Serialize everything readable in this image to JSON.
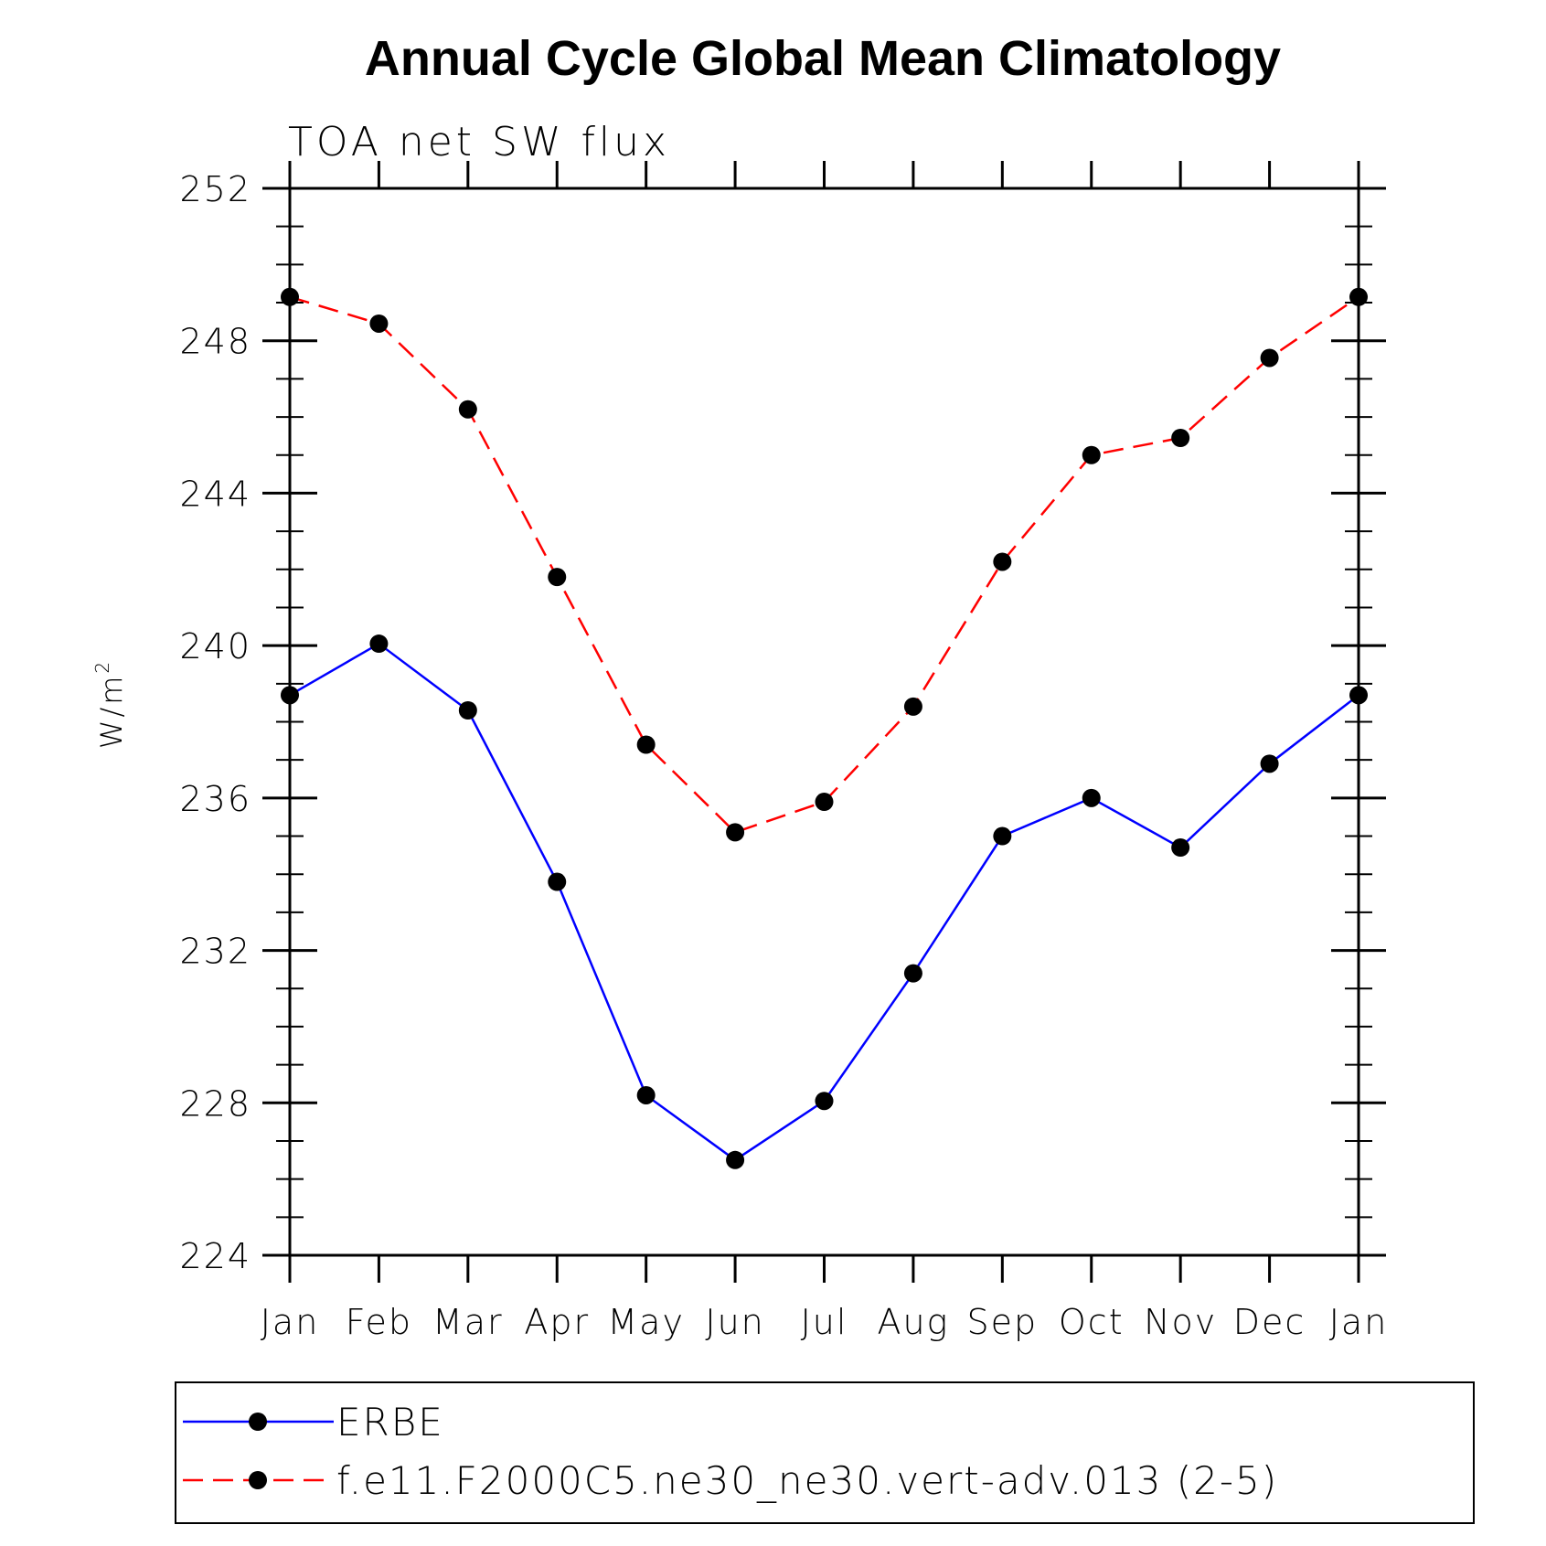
{
  "chart_data": {
    "type": "line",
    "title": "Annual Cycle Global Mean Climatology",
    "subtitle": "TOA net SW flux",
    "xlabel": "",
    "ylabel_main": "W/m",
    "ylabel_sup": "2",
    "categories": [
      "Jan",
      "Feb",
      "Mar",
      "Apr",
      "May",
      "Jun",
      "Jul",
      "Aug",
      "Sep",
      "Oct",
      "Nov",
      "Dec",
      "Jan"
    ],
    "ylim": [
      224,
      252
    ],
    "yticks": [
      224,
      228,
      232,
      236,
      240,
      244,
      248,
      252
    ],
    "series": [
      {
        "name": "ERBE",
        "color": "#0000ff",
        "style": "solid",
        "marker": "circle",
        "values": [
          238.7,
          240.05,
          238.3,
          233.8,
          228.2,
          226.5,
          228.05,
          231.4,
          235.0,
          236.0,
          234.7,
          236.9,
          238.7
        ]
      },
      {
        "name": "f.e11.F2000C5.ne30_ne30.vert-adv.013 (2-5)",
        "color": "#ff0000",
        "style": "dashed",
        "marker": "circle",
        "values": [
          249.15,
          248.45,
          246.2,
          241.8,
          237.4,
          235.1,
          235.9,
          238.4,
          242.2,
          245.0,
          245.45,
          247.55,
          249.15
        ]
      }
    ],
    "legend_position": "bottom",
    "grid": false
  }
}
